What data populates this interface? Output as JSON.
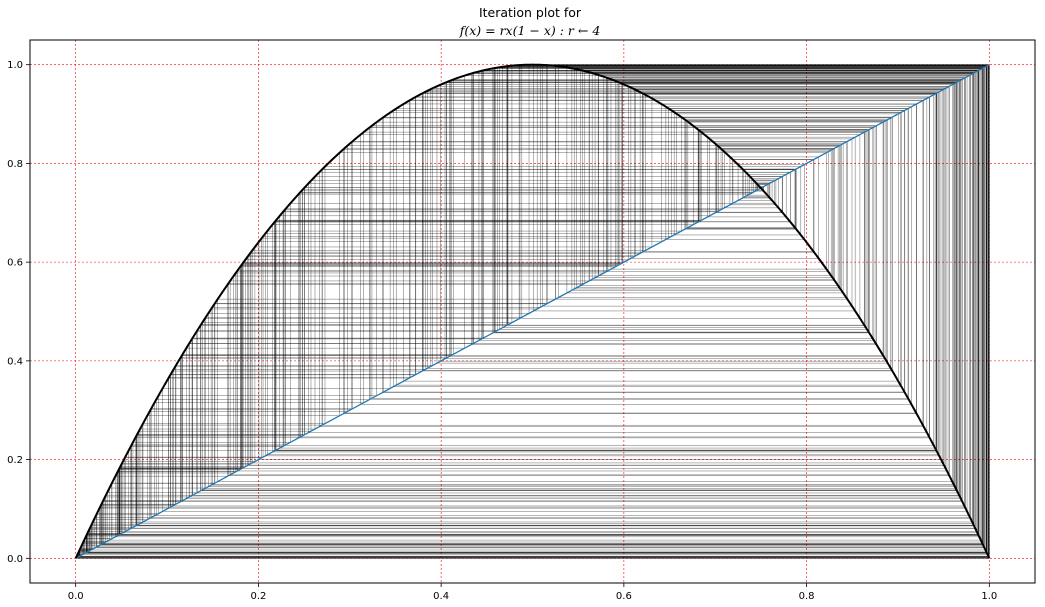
{
  "chart_data": {
    "type": "line",
    "title": "Iteration plot for",
    "subtitle": "f(x) = rx(1 − x) : r ← 4",
    "xlabel": "",
    "ylabel": "",
    "xlim": [
      -0.05,
      1.05
    ],
    "ylim": [
      -0.05,
      1.05
    ],
    "x_ticks": [
      "0.0",
      "0.2",
      "0.4",
      "0.6",
      "0.8",
      "1.0"
    ],
    "y_ticks": [
      "0.0",
      "0.2",
      "0.4",
      "0.6",
      "0.8",
      "1.0"
    ],
    "grid": true,
    "grid_color": "#ff0000",
    "parameter_r": 4,
    "x0": 0.001,
    "iterations": 500,
    "series": [
      {
        "kind": "function",
        "expression": "r*x*(1-x)",
        "color": "#000000"
      },
      {
        "kind": "identity",
        "expression": "y = x",
        "color": "#1f77b4"
      },
      {
        "kind": "cobweb",
        "color": "#000000"
      }
    ]
  }
}
